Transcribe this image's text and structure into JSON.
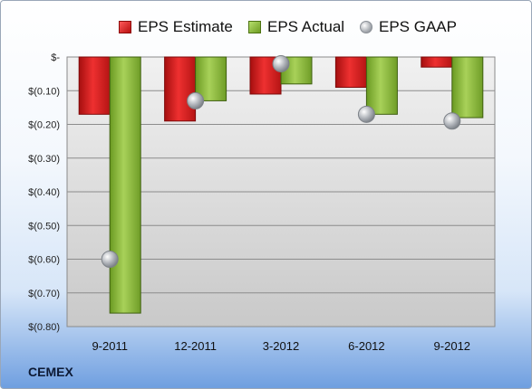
{
  "chart_data": {
    "type": "bar",
    "categories": [
      "9-2011",
      "12-2011",
      "3-2012",
      "6-2012",
      "9-2012"
    ],
    "series": [
      {
        "name": "EPS Estimate",
        "type": "bar",
        "color": "#cc1f1f",
        "values": [
          -0.17,
          -0.19,
          -0.11,
          -0.09,
          -0.03
        ]
      },
      {
        "name": "EPS Actual",
        "type": "bar",
        "color": "#8dba3a",
        "values": [
          -0.76,
          -0.13,
          -0.08,
          -0.17,
          -0.18
        ]
      },
      {
        "name": "EPS GAAP",
        "type": "marker",
        "color": "#a9adb3",
        "values": [
          -0.6,
          -0.13,
          -0.02,
          -0.17,
          -0.19
        ]
      }
    ],
    "ylim": [
      -0.8,
      0.0
    ],
    "yticks": [
      {
        "value": 0.0,
        "label": "$-"
      },
      {
        "value": -0.1,
        "label": "$(0.10)"
      },
      {
        "value": -0.2,
        "label": "$(0.20)"
      },
      {
        "value": -0.3,
        "label": "$(0.30)"
      },
      {
        "value": -0.4,
        "label": "$(0.40)"
      },
      {
        "value": -0.5,
        "label": "$(0.50)"
      },
      {
        "value": -0.6,
        "label": "$(0.60)"
      },
      {
        "value": -0.7,
        "label": "$(0.70)"
      },
      {
        "value": -0.8,
        "label": "$(0.80)"
      }
    ],
    "grid": true,
    "legend_position": "top",
    "title": "",
    "xlabel": "",
    "ylabel": ""
  },
  "legend": {
    "estimate": "EPS Estimate",
    "actual": "EPS Actual",
    "gaap": "EPS GAAP"
  },
  "brand": "CEMEX"
}
